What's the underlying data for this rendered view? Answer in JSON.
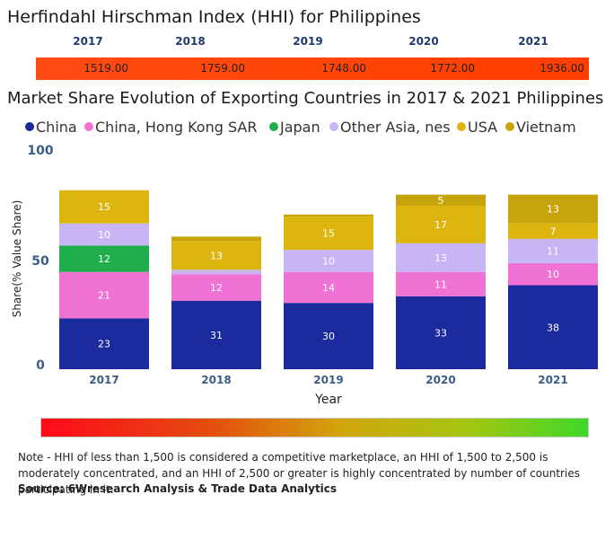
{
  "hhi": {
    "title": "Herfindahl Hirschman Index (HHI) for Philippines",
    "years": [
      "2017",
      "2018",
      "2019",
      "2020",
      "2021"
    ],
    "values": [
      "1519.00",
      "1759.00",
      "1748.00",
      "1772.00",
      "1936.00"
    ]
  },
  "chart_title": "Market Share Evolution of Exporting Countries in 2017 & 2021 Philippines",
  "chart_data": {
    "type": "bar",
    "stacked": true,
    "categories": [
      "2017",
      "2018",
      "2019",
      "2020",
      "2021"
    ],
    "series": [
      {
        "name": "China",
        "color": "#1b2a9c",
        "values": [
          23,
          31,
          30,
          33,
          38
        ]
      },
      {
        "name": "China, Hong Kong SAR",
        "color": "#ef72d4",
        "values": [
          21,
          12,
          14,
          11,
          10
        ]
      },
      {
        "name": "Japan",
        "color": "#1fae4b",
        "values": [
          12,
          0,
          0,
          0,
          0
        ]
      },
      {
        "name": "Other Asia, nes",
        "color": "#c7b5f6",
        "values": [
          10,
          2,
          10,
          13,
          11
        ]
      },
      {
        "name": "USA",
        "color": "#dcb50e",
        "values": [
          15,
          13,
          15,
          17,
          7
        ]
      },
      {
        "name": "Vietnam",
        "color": "#c8a40c",
        "values": [
          0,
          2,
          1,
          5,
          13
        ]
      }
    ],
    "labels": [
      {
        "category": "2017",
        "series": "China",
        "text": "23"
      },
      {
        "category": "2017",
        "series": "China, Hong Kong SAR",
        "text": "21"
      },
      {
        "category": "2017",
        "series": "Japan",
        "text": "12"
      },
      {
        "category": "2017",
        "series": "Other Asia, nes",
        "text": "10"
      },
      {
        "category": "2017",
        "series": "USA",
        "text": "15"
      },
      {
        "category": "2018",
        "series": "China",
        "text": "31"
      },
      {
        "category": "2018",
        "series": "China, Hong Kong SAR",
        "text": "12"
      },
      {
        "category": "2018",
        "series": "USA",
        "text": "13"
      },
      {
        "category": "2019",
        "series": "China",
        "text": "30"
      },
      {
        "category": "2019",
        "series": "China, Hong Kong SAR",
        "text": "14"
      },
      {
        "category": "2019",
        "series": "Other Asia, nes",
        "text": "10"
      },
      {
        "category": "2019",
        "series": "USA",
        "text": "15"
      },
      {
        "category": "2020",
        "series": "China",
        "text": "33"
      },
      {
        "category": "2020",
        "series": "China, Hong Kong SAR",
        "text": "11"
      },
      {
        "category": "2020",
        "series": "Other Asia, nes",
        "text": "13"
      },
      {
        "category": "2020",
        "series": "USA",
        "text": "17"
      },
      {
        "category": "2020",
        "series": "Vietnam",
        "text": "5"
      },
      {
        "category": "2021",
        "series": "China",
        "text": "38"
      },
      {
        "category": "2021",
        "series": "China, Hong Kong SAR",
        "text": "10"
      },
      {
        "category": "2021",
        "series": "Other Asia, nes",
        "text": "11"
      },
      {
        "category": "2021",
        "series": "USA",
        "text": "7"
      },
      {
        "category": "2021",
        "series": "Vietnam",
        "text": "13"
      }
    ],
    "xlabel": "Year",
    "ylabel": "Share(% Value Share)",
    "yticks": [
      "0",
      "50",
      "100"
    ],
    "ylim": [
      0,
      100
    ]
  },
  "note": "Note - HHI of less than 1,500 is considered a competitive marketplace, an HHI of 1,500 to 2,500 is moderately concentrated, and an HHI of 2,500 or greater is highly concentrated by number of countries participating in it.",
  "source": "Source: 6Wresearch Analysis & Trade Data Analytics"
}
